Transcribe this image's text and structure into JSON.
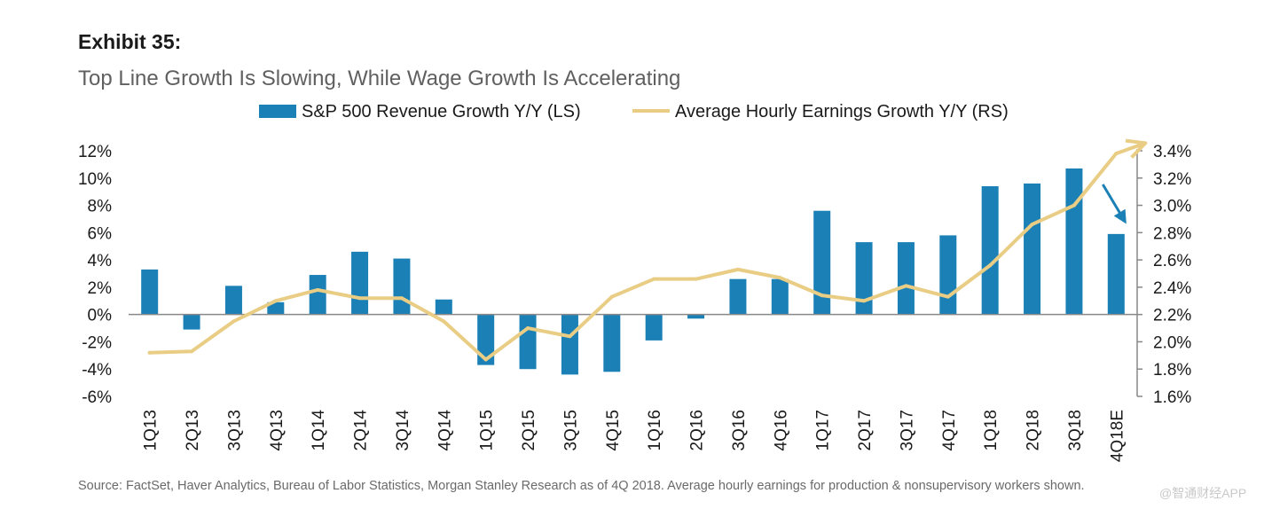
{
  "header": {
    "exhibit": "Exhibit 35:",
    "subtitle": "Top Line Growth Is Slowing, While Wage Growth Is Accelerating"
  },
  "legend": {
    "bar_label": "S&P 500 Revenue Growth Y/Y (LS)",
    "line_label": "Average Hourly Earnings Growth Y/Y (RS)"
  },
  "colors": {
    "bar": "#1a80b6",
    "line": "#e9cd85",
    "annotation_arrow": "#1a80b6",
    "axis": "#888888"
  },
  "footer": {
    "source": "Source: FactSet, Haver Analytics, Bureau of Labor Statistics, Morgan Stanley Research as of 4Q 2018. Average hourly earnings for production & nonsupervisory workers shown.",
    "watermark": "@智通财经APP"
  },
  "chart_data": {
    "type": "bar+line",
    "categories": [
      "1Q13",
      "2Q13",
      "3Q13",
      "4Q13",
      "1Q14",
      "2Q14",
      "3Q14",
      "4Q14",
      "1Q15",
      "2Q15",
      "3Q15",
      "4Q15",
      "1Q16",
      "2Q16",
      "3Q16",
      "4Q16",
      "1Q17",
      "2Q17",
      "3Q17",
      "4Q17",
      "1Q18",
      "2Q18",
      "3Q18",
      "4Q18E"
    ],
    "series": [
      {
        "name": "S&P 500 Revenue Growth Y/Y (LS)",
        "axis": "left",
        "kind": "bar",
        "values": [
          3.3,
          -1.1,
          2.1,
          0.9,
          2.9,
          4.6,
          4.1,
          1.1,
          -3.7,
          -4.0,
          -4.4,
          -4.2,
          -1.9,
          -0.3,
          2.6,
          2.6,
          7.6,
          5.3,
          5.3,
          5.8,
          9.4,
          9.6,
          10.7,
          5.9
        ]
      },
      {
        "name": "Average Hourly Earnings Growth Y/Y (RS)",
        "axis": "right",
        "kind": "line",
        "values": [
          1.92,
          1.93,
          2.15,
          2.3,
          2.38,
          2.32,
          2.32,
          2.15,
          1.87,
          2.1,
          2.04,
          2.33,
          2.46,
          2.46,
          2.53,
          2.47,
          2.34,
          2.3,
          2.41,
          2.33,
          2.56,
          2.86,
          3.0,
          3.38
        ]
      }
    ],
    "y_left": {
      "min": -6,
      "max": 12,
      "step": 2,
      "tick_labels": [
        "-6%",
        "-4%",
        "-2%",
        "0%",
        "2%",
        "4%",
        "6%",
        "8%",
        "10%",
        "12%"
      ]
    },
    "y_right": {
      "min": 1.6,
      "max": 3.4,
      "step": 0.2,
      "tick_labels": [
        "1.6%",
        "1.8%",
        "2.0%",
        "2.2%",
        "2.4%",
        "2.6%",
        "2.8%",
        "3.0%",
        "3.2%",
        "3.4%"
      ]
    },
    "annotations": [
      {
        "type": "arrow",
        "series": "S&P 500 Revenue Growth Y/Y (LS)",
        "from_category": "3Q18",
        "to_category": "4Q18E",
        "direction": "down"
      },
      {
        "type": "arrow",
        "series": "Average Hourly Earnings Growth Y/Y (RS)",
        "from_category": "3Q18",
        "to_category": "4Q18E",
        "direction": "up"
      }
    ],
    "grid": false
  }
}
